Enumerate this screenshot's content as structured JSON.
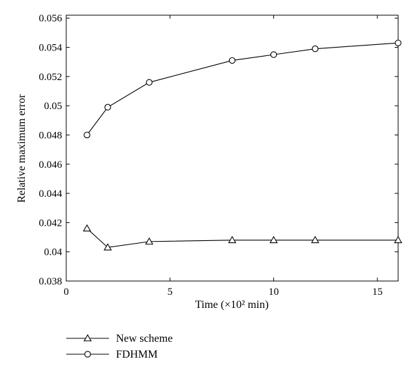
{
  "chart_data": {
    "type": "line",
    "xlabel": "Time (×10² min)",
    "ylabel": "Relative maximum error",
    "xlim": [
      0,
      16
    ],
    "ylim": [
      0.038,
      0.0562
    ],
    "xticks": [
      0,
      5,
      10,
      15
    ],
    "yticks": [
      0.038,
      0.04,
      0.042,
      0.044,
      0.046,
      0.048,
      0.05,
      0.052,
      0.054,
      0.056
    ],
    "ytick_labels": [
      "0.038",
      "0.04",
      "0.042",
      "0.044",
      "0.046",
      "0.048",
      "0.05",
      "0.052",
      "0.054",
      "0.056"
    ],
    "grid": false,
    "legend_position": "below-left",
    "x": [
      1,
      2,
      4,
      8,
      10,
      12,
      16
    ],
    "series": [
      {
        "name": "New scheme",
        "marker": "triangle",
        "color": "#000000",
        "values": [
          0.0416,
          0.0403,
          0.0407,
          0.0408,
          0.0408,
          0.0408,
          0.0408
        ]
      },
      {
        "name": "FDHMM",
        "marker": "circle",
        "color": "#000000",
        "values": [
          0.048,
          0.0499,
          0.0516,
          0.0531,
          0.0535,
          0.0539,
          0.0543
        ]
      }
    ]
  }
}
